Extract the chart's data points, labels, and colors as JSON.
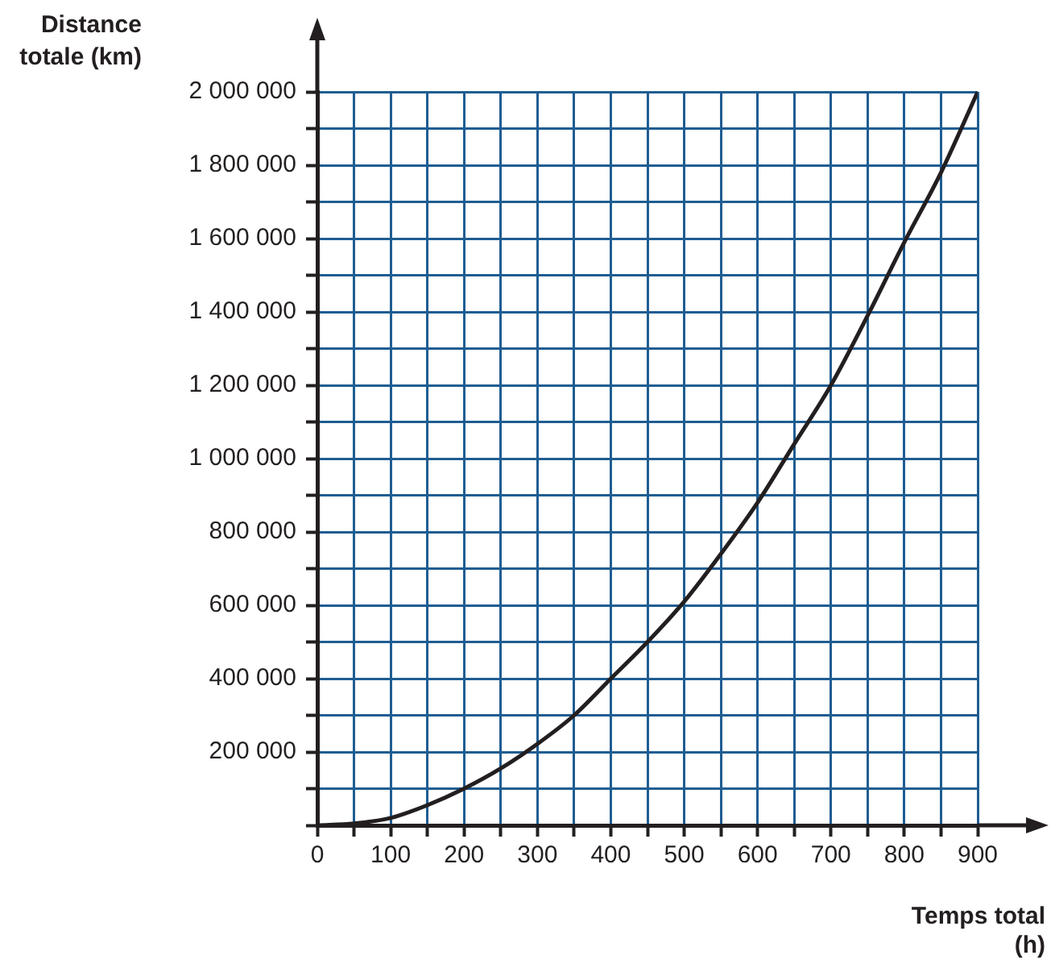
{
  "chart_data": {
    "type": "line",
    "xlabel": "Temps total (h)",
    "ylabel": "Distance totale (km)",
    "x": [
      0,
      50,
      100,
      150,
      200,
      250,
      300,
      350,
      400,
      450,
      500,
      550,
      600,
      650,
      700,
      750,
      800,
      850,
      900
    ],
    "series": [
      {
        "color": "#231f20",
        "values": [
          0,
          5000,
          20000,
          55000,
          100000,
          155000,
          222000,
          300000,
          400000,
          500000,
          610000,
          740000,
          880000,
          1040000,
          1200000,
          1390000,
          1590000,
          1780000,
          2000000
        ]
      }
    ],
    "xlim": [
      0,
      900
    ],
    "ylim": [
      0,
      2000000
    ],
    "xticks": [
      0,
      {
        "value": 50,
        "label": null
      },
      100,
      {
        "value": 150,
        "label": null
      },
      200,
      {
        "value": 250,
        "label": null
      },
      300,
      {
        "value": 350,
        "label": null
      },
      400,
      {
        "value": 450,
        "label": null
      },
      500,
      {
        "value": 550,
        "label": null
      },
      600,
      {
        "value": 650,
        "label": null
      },
      700,
      {
        "value": 750,
        "label": null
      },
      800,
      {
        "value": 850,
        "label": null
      },
      900
    ],
    "yticks": [
      {
        "value": 0,
        "label": null
      },
      {
        "value": 100000,
        "label": null
      },
      {
        "value": 200000,
        "label": "200 000"
      },
      {
        "value": 300000,
        "label": null
      },
      {
        "value": 400000,
        "label": "400 000"
      },
      {
        "value": 500000,
        "label": null
      },
      {
        "value": 600000,
        "label": "600 000"
      },
      {
        "value": 700000,
        "label": null
      },
      {
        "value": 800000,
        "label": "800 000"
      },
      {
        "value": 900000,
        "label": null
      },
      {
        "value": 1000000,
        "label": "1 000 000"
      },
      {
        "value": 1100000,
        "label": null
      },
      {
        "value": 1200000,
        "label": "1 200 000"
      },
      {
        "value": 1300000,
        "label": null
      },
      {
        "value": 1400000,
        "label": "1 400 000"
      },
      {
        "value": 1500000,
        "label": null
      },
      {
        "value": 1600000,
        "label": "1 600 000"
      },
      {
        "value": 1700000,
        "label": null
      },
      {
        "value": 1800000,
        "label": "1 800 000"
      },
      {
        "value": 1900000,
        "label": null
      },
      {
        "value": 2000000,
        "label": "2 000 000"
      }
    ],
    "grid": true,
    "marker": "none",
    "line_style": "solid"
  }
}
